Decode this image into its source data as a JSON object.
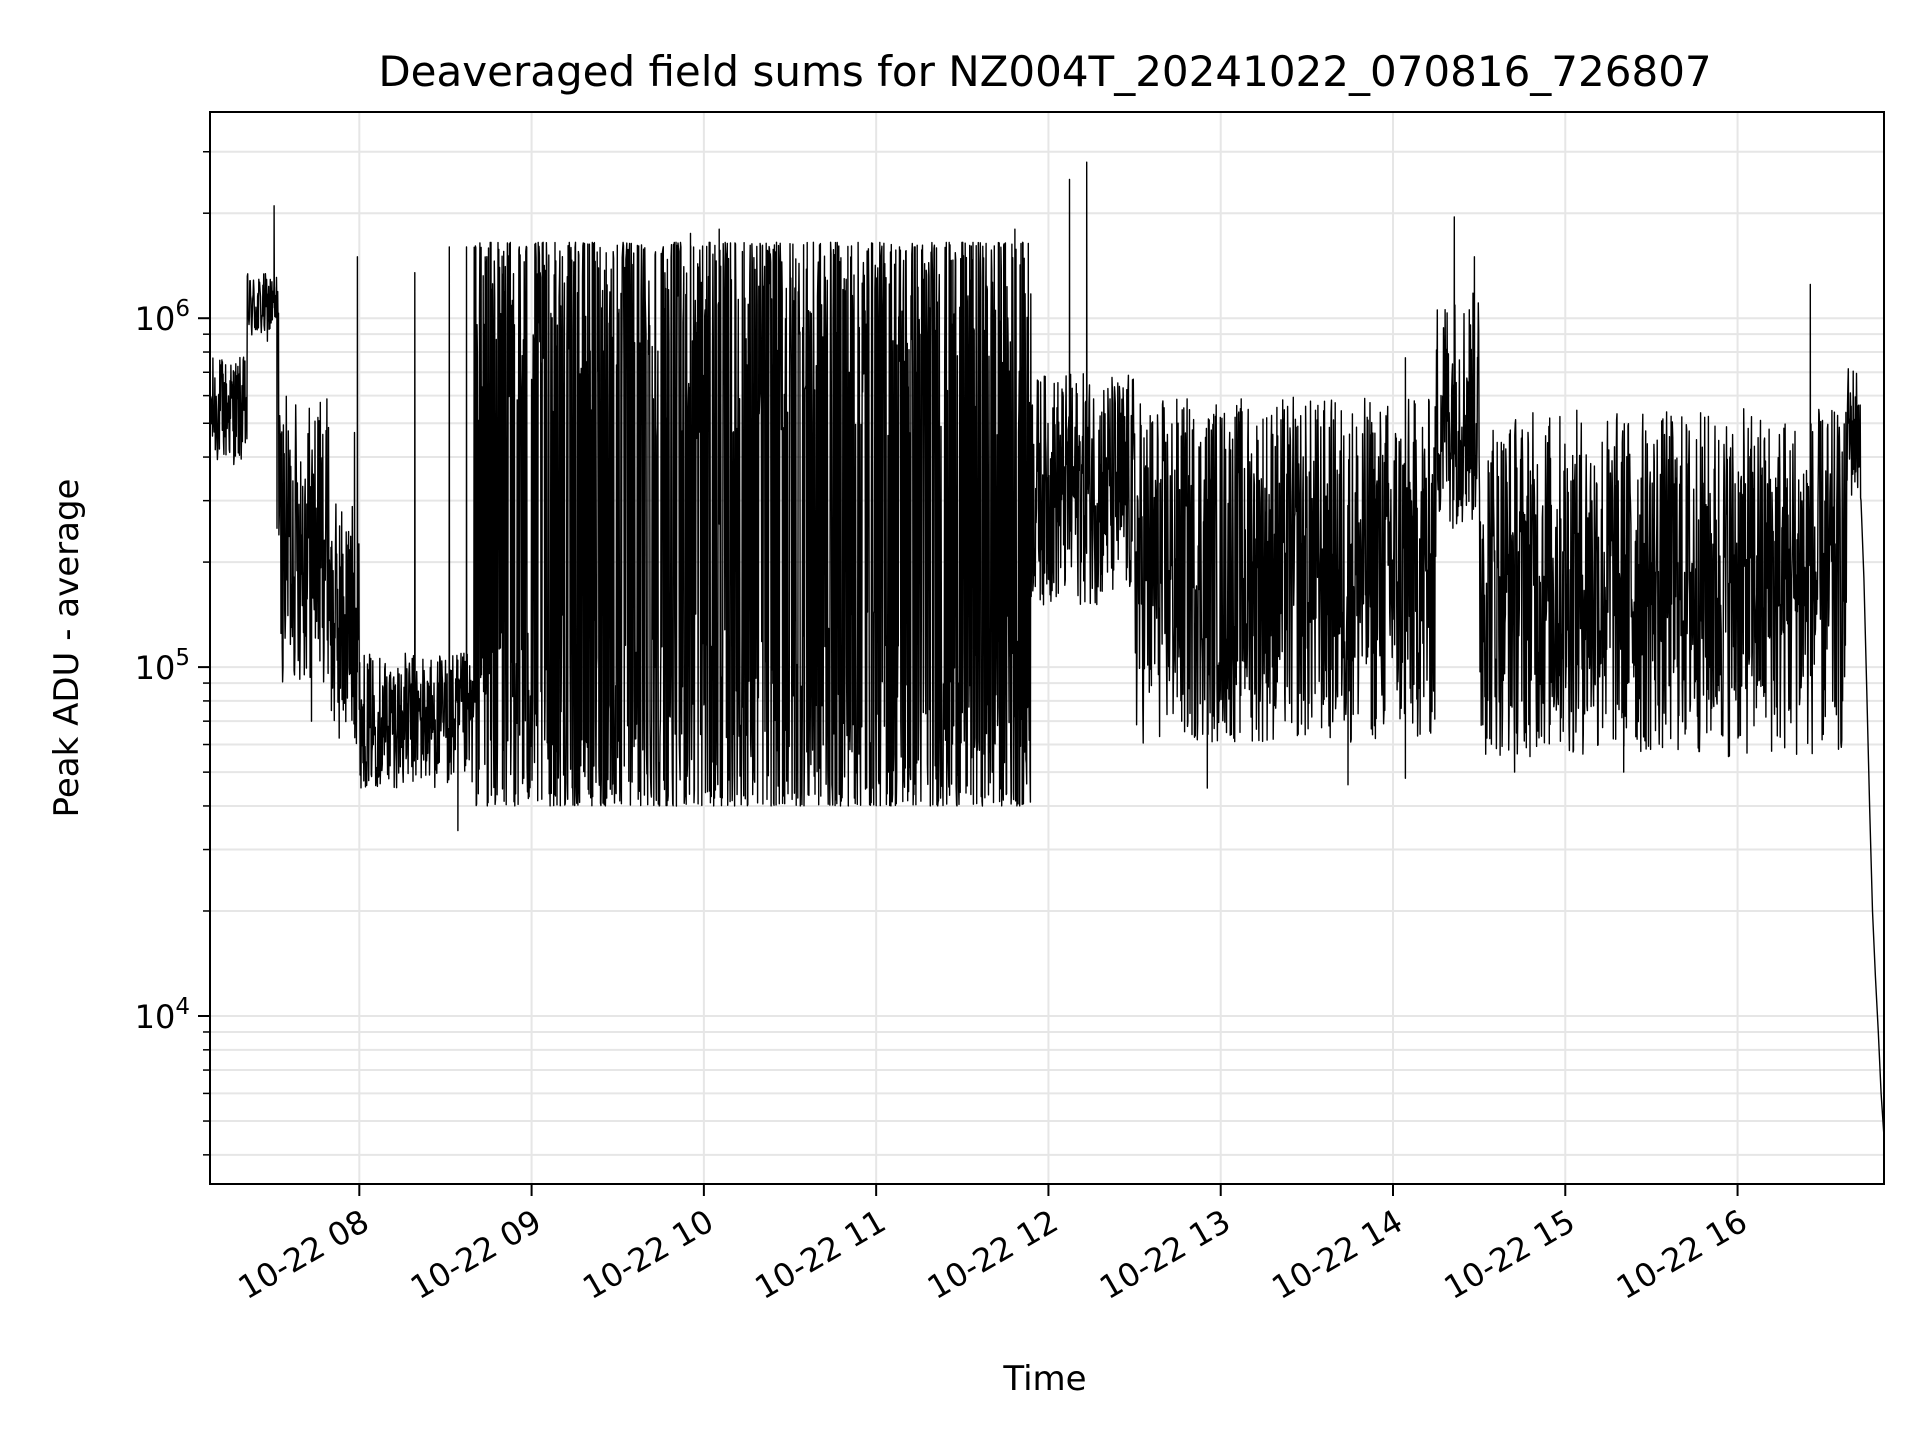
{
  "chart_data": {
    "type": "line",
    "title": "Deaveraged field sums for NZ004T_20241022_070816_726807",
    "xlabel": "Time",
    "ylabel": "Peak ADU - average",
    "y_scale": "log",
    "xlim": [
      "2024-10-22 07:08",
      "2024-10-22 16:51"
    ],
    "ylim": [
      3300,
      3900000
    ],
    "grid": true,
    "x_ticks": [
      "10-22 08",
      "10-22 09",
      "10-22 10",
      "10-22 11",
      "10-22 12",
      "10-22 13",
      "10-22 14",
      "10-22 15",
      "10-22 16"
    ],
    "y_ticks": [
      {
        "value": 10000,
        "base": "10",
        "exp": "4"
      },
      {
        "value": 100000,
        "base": "10",
        "exp": "5"
      },
      {
        "value": 1000000,
        "base": "10",
        "exp": "6"
      }
    ],
    "line_color": "#000000",
    "grid_color": "#e6e6e6",
    "segments": [
      {
        "start": "2024-10-22 07:08",
        "end": "2024-10-22 07:21",
        "low": 380000,
        "high": 780000,
        "spikes": [
          {
            "t": "2024-10-22 07:12",
            "value": 750000
          }
        ]
      },
      {
        "start": "2024-10-22 07:21",
        "end": "2024-10-22 07:32",
        "low": 850000,
        "high": 1350000,
        "spikes": [
          {
            "t": "2024-10-22 07:30",
            "value": 2100000
          },
          {
            "t": "2024-10-22 07:31",
            "value": 250000
          }
        ]
      },
      {
        "start": "2024-10-22 07:32",
        "end": "2024-10-22 07:50",
        "low": 90000,
        "high": 600000,
        "spikes": [
          {
            "t": "2024-10-22 07:43",
            "value": 70000
          }
        ]
      },
      {
        "start": "2024-10-22 07:50",
        "end": "2024-10-22 08:00",
        "low": 60000,
        "high": 300000,
        "spikes": [
          {
            "t": "2024-10-22 07:59",
            "value": 1500000
          },
          {
            "t": "2024-10-22 07:58",
            "value": 470000
          }
        ]
      },
      {
        "start": "2024-10-22 08:00",
        "end": "2024-10-22 08:40",
        "low": 45000,
        "high": 110000,
        "spikes": [
          {
            "t": "2024-10-22 08:19",
            "value": 1350000
          },
          {
            "t": "2024-10-22 08:31",
            "value": 1600000
          },
          {
            "t": "2024-10-22 08:34",
            "value": 34000
          },
          {
            "t": "2024-10-22 08:37",
            "value": 1600000
          }
        ]
      },
      {
        "start": "2024-10-22 08:40",
        "end": "2024-10-22 11:54",
        "low": 40000,
        "high": 1650000,
        "spikes": [
          {
            "t": "2024-10-22 09:55",
            "value": 1750000
          },
          {
            "t": "2024-10-22 10:05",
            "value": 1800000
          },
          {
            "t": "2024-10-22 11:48",
            "value": 1800000
          }
        ]
      },
      {
        "start": "2024-10-22 11:54",
        "end": "2024-10-22 12:30",
        "low": 150000,
        "high": 700000,
        "spikes": [
          {
            "t": "2024-10-22 12:07",
            "value": 2500000
          },
          {
            "t": "2024-10-22 12:13",
            "value": 2800000
          }
        ]
      },
      {
        "start": "2024-10-22 12:30",
        "end": "2024-10-22 14:15",
        "low": 60000,
        "high": 600000,
        "spikes": [
          {
            "t": "2024-10-22 12:55",
            "value": 45000
          },
          {
            "t": "2024-10-22 13:44",
            "value": 46000
          },
          {
            "t": "2024-10-22 14:04",
            "value": 48000
          },
          {
            "t": "2024-10-22 14:04",
            "value": 770000
          }
        ]
      },
      {
        "start": "2024-10-22 14:15",
        "end": "2024-10-22 14:30",
        "low": 250000,
        "high": 1200000,
        "spikes": [
          {
            "t": "2024-10-22 14:21",
            "value": 1950000
          },
          {
            "t": "2024-10-22 14:28",
            "value": 1500000
          }
        ]
      },
      {
        "start": "2024-10-22 14:30",
        "end": "2024-10-22 16:38",
        "low": 55000,
        "high": 550000,
        "spikes": [
          {
            "t": "2024-10-22 14:42",
            "value": 50000
          },
          {
            "t": "2024-10-22 15:20",
            "value": 50000
          },
          {
            "t": "2024-10-22 16:25",
            "value": 1250000
          }
        ]
      },
      {
        "start": "2024-10-22 16:38",
        "end": "2024-10-22 16:43",
        "low": 300000,
        "high": 750000,
        "spikes": []
      }
    ],
    "tail": [
      {
        "t": "2024-10-22 16:43",
        "value": 300000
      },
      {
        "t": "2024-10-22 16:44",
        "value": 180000
      },
      {
        "t": "2024-10-22 16:45",
        "value": 85000
      },
      {
        "t": "2024-10-22 16:46",
        "value": 40000
      },
      {
        "t": "2024-10-22 16:47",
        "value": 20000
      },
      {
        "t": "2024-10-22 16:48",
        "value": 13000
      },
      {
        "t": "2024-10-22 16:49",
        "value": 9000
      },
      {
        "t": "2024-10-22 16:50",
        "value": 6000
      },
      {
        "t": "2024-10-22 16:51",
        "value": 4500
      }
    ]
  }
}
